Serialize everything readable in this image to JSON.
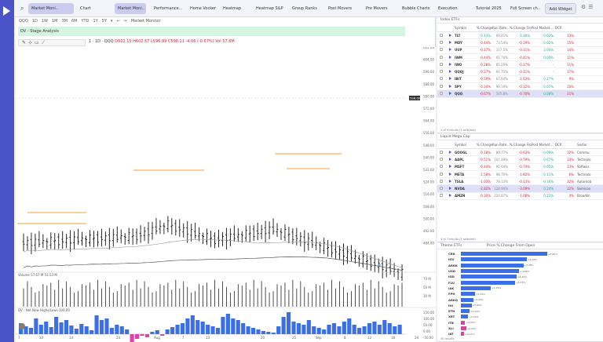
{
  "topbar": {
    "search_icon": "search-icon",
    "tabs": [
      {
        "label": "Market Moni..",
        "active": true
      },
      {
        "label": "Chart",
        "active": false
      },
      {
        "label": "Market Moni..",
        "active": true
      },
      {
        "label": "Performance...",
        "active": false
      },
      {
        "label": "Home Vocker",
        "active": false
      },
      {
        "label": "Heatmap",
        "active": false
      },
      {
        "label": "Heatmap S&P",
        "active": false
      },
      {
        "label": "Group Ranks",
        "active": false
      },
      {
        "label": "Post Movers",
        "active": false
      },
      {
        "label": "Pre Movers",
        "active": false
      },
      {
        "label": "Bubble Charts",
        "active": false
      },
      {
        "label": "Execution",
        "active": false
      },
      {
        "label": "Tutorial 2025",
        "active": false
      },
      {
        "label": "Full Screen ch..",
        "active": false
      }
    ],
    "add_widget": "Add Widget"
  },
  "chart": {
    "toolbar": [
      "QQQ",
      "1D",
      "1W",
      "1M",
      "3M",
      "6M",
      "YTD",
      "1Y",
      "5Y",
      "▾",
      "↩",
      "↪",
      "Market Monitor"
    ],
    "stage_label": "DV - Stage Analysis",
    "ohlc_prefix": "1 · 1D · QQQ",
    "ohlc_values": "O602.15 H602.57 L596.99 C598.11 -4.06 (-0.67%) Vol 57.6M",
    "ind_ema": "EMA  603.53",
    "ind_ma1": "MA  571.56",
    "ind_ma2": "MA  524.75",
    "price_label": "598.00",
    "y_ticks": [
      "612.00",
      "604.00",
      "596.00",
      "588.00",
      "580.00",
      "572.00",
      "564.00",
      "556.00",
      "548.00",
      "540.00",
      "532.00",
      "524.00",
      "516.00",
      "508.00",
      "500.00",
      "492.00",
      "484.00"
    ],
    "x_ticks": [
      "7",
      "10",
      "14",
      "24",
      "Aug",
      "7",
      "13",
      "20",
      "25",
      "Sep",
      "8",
      "12",
      "18",
      "24"
    ],
    "volume_label": "Volume  57.67 M  51.53 M",
    "vol_ticks": [
      "70 M",
      "50 M",
      "30 M"
    ],
    "hl_label": "DV - Net New Highs/Lows  100.00",
    "hl_ticks": [
      "150.00",
      "100.00",
      "50.00",
      "0.00",
      "-50.00"
    ]
  },
  "index_etfs": {
    "title": "Index ETFs",
    "headers": [
      "Symbol",
      "% Change Today",
      "Run Rate...",
      "% Change From Open",
      "Post Market...",
      "DCR"
    ],
    "rows": [
      {
        "sym": "TLT",
        "chg": "0.13%",
        "run": "66.81%",
        "open": "0.16%",
        "post": "0.02%",
        "dcr": "13%"
      },
      {
        "sym": "MDY",
        "chg": "-0.44%",
        "run": "73.54%",
        "open": "-0.19%",
        "post": "0.02%",
        "dcr": "15%"
      },
      {
        "sym": "UUP",
        "chg": "-0.37%",
        "run": "117.5%",
        "open": "-0.11%",
        "post": "2.00%",
        "dcr": "14%"
      },
      {
        "sym": "IWM",
        "chg": "-0.44%",
        "run": "91.74%",
        "open": "-0.41%",
        "post": "0.05%",
        "dcr": "11%"
      },
      {
        "sym": "IWO",
        "chg": "-0.28%",
        "run": "85.20%",
        "open": "-0.17%",
        "post": "-",
        "dcr": "11%"
      },
      {
        "sym": "QQQJ",
        "chg": "-0.27%",
        "run": "91.75%",
        "open": "-0.11%",
        "post": "-",
        "dcr": "17%"
      },
      {
        "sym": "IBIT",
        "chg": "-0.59%",
        "run": "67.64%",
        "open": "-1.03%",
        "post": "0.27%",
        "dcr": "9%"
      },
      {
        "sym": "SPY",
        "chg": "-0.34%",
        "run": "90.19%",
        "open": "-0.32%",
        "post": "0.07%",
        "dcr": "20%"
      },
      {
        "sym": "QQQ",
        "chg": "-0.67%",
        "run": "105.8%",
        "open": "-0.70%",
        "post": "0.08%",
        "dcr": "21%"
      }
    ],
    "footer": "1 of 9 results (1 selected)"
  },
  "mega_cap": {
    "title": "Liquid Mega Cap",
    "headers": [
      "Symbol",
      "% Change Today",
      "Run Rate...",
      "% Change From Open",
      "Post Market...",
      "DCR",
      "Sector"
    ],
    "rows": [
      {
        "sym": "GOOGL",
        "chg": "-0.18%",
        "run": "80.77%",
        "open": "-0.63%",
        "post": "0.09%",
        "dcr": "32%",
        "sector": "Commu"
      },
      {
        "sym": "AAPL",
        "chg": "-0.51%",
        "run": "107.49%",
        "open": "-0.79%",
        "post": "0.67%",
        "dcr": "33%",
        "sector": "Technolo"
      },
      {
        "sym": "MSFT",
        "chg": "-0.44%",
        "run": "91.04%",
        "open": "-0.74%",
        "post": "0.05%",
        "dcr": "13%",
        "sector": "Softwar"
      },
      {
        "sym": "META",
        "chg": "-1.58%",
        "run": "98.70%",
        "open": "-1.82%",
        "post": "0.11%",
        "dcr": "6%",
        "sector": "Technolo"
      },
      {
        "sym": "TSLA",
        "chg": "-1.03%",
        "run": "78.13%",
        "open": "-0.13%",
        "post": "0.16%",
        "dcr": "32%",
        "sector": "Automob"
      },
      {
        "sym": "NVDA",
        "chg": "-2.82%",
        "run": "128.94%",
        "open": "-3.09%",
        "post": "0.24%",
        "dcr": "22%",
        "sector": "Semicon"
      },
      {
        "sym": "AMZN",
        "chg": "-0.30%",
        "run": "224.87%",
        "open": "-1.08%",
        "post": "0.22%",
        "dcr": "4%",
        "sector": "Broadlin"
      }
    ],
    "footer": "4 of 7 results (1 selected)"
  },
  "theme": {
    "title_left": "Theme ETFs",
    "title_right": "Price % Change From Open",
    "rows": [
      {
        "sym": "CRK",
        "pct": "+6.89%",
        "v": 6.89
      },
      {
        "sym": "IGV",
        "pct": "+5.26%",
        "v": 5.26
      },
      {
        "sym": "ARKK",
        "pct": "+4.98%",
        "v": 4.98
      },
      {
        "sym": "USD",
        "pct": "+4.66%",
        "v": 4.66
      },
      {
        "sym": "IGD",
        "pct": "+4.45%",
        "v": 4.45
      },
      {
        "sym": "FLU",
        "pct": "+4.33%",
        "v": 4.33
      },
      {
        "sym": "IAK",
        "pct": "+2.39%",
        "v": 2.39
      },
      {
        "sym": "FPH",
        "pct": "+1.14%",
        "v": 1.14
      },
      {
        "sym": "ARKQ",
        "pct": "+0.99%",
        "v": 0.99
      },
      {
        "sym": "IHI",
        "pct": "+0.85%",
        "v": 0.85
      },
      {
        "sym": "ETH",
        "pct": "+0.70%",
        "v": 0.7
      },
      {
        "sym": "XRT",
        "pct": "+0.59%",
        "v": 0.59
      },
      {
        "sym": "ITB",
        "pct": "+0.34%",
        "v": 0.34
      },
      {
        "sym": "XLI",
        "pct": "+0.42%",
        "v": 0.42
      },
      {
        "sym": "IAT",
        "pct": "+0.27%",
        "v": 0.27
      }
    ],
    "footer": "30 results"
  },
  "colors": {
    "accent": "#4a54c8",
    "up_bar": "#3b6fe8",
    "down_bar": "#e040a8",
    "negative": "#dd2233",
    "stage_band": "#d5f5e0"
  }
}
